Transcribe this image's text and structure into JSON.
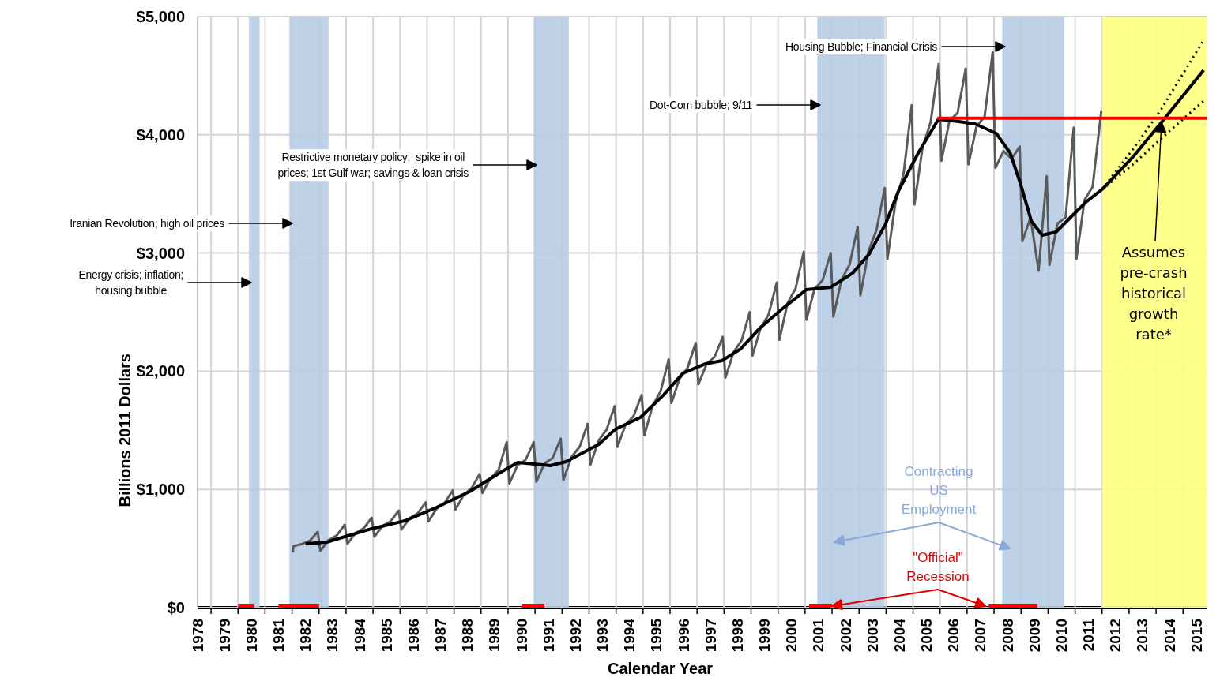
{
  "chart_data": {
    "type": "line",
    "xlabel": "Calendar Year",
    "ylabel": "Billions 2011 Dollars",
    "xlim": [
      1978.5,
      2015.9
    ],
    "ylim": [
      0,
      5000
    ],
    "xticks": [
      {
        "value": 1978.5,
        "label": "1978"
      },
      {
        "value": 1979,
        "label": null
      },
      {
        "value": 1979.5,
        "label": "1979"
      },
      {
        "value": 1980,
        "label": null
      },
      {
        "value": 1980.5,
        "label": "1980"
      },
      {
        "value": 1981,
        "label": null
      },
      {
        "value": 1981.5,
        "label": "1981"
      },
      {
        "value": 1982,
        "label": null
      },
      {
        "value": 1982.5,
        "label": "1982"
      },
      {
        "value": 1983,
        "label": null
      },
      {
        "value": 1983.5,
        "label": "1983"
      },
      {
        "value": 1984,
        "label": null
      },
      {
        "value": 1984.5,
        "label": "1984"
      },
      {
        "value": 1985,
        "label": null
      },
      {
        "value": 1985.5,
        "label": "1985"
      },
      {
        "value": 1986,
        "label": null
      },
      {
        "value": 1986.5,
        "label": "1986"
      },
      {
        "value": 1987,
        "label": null
      },
      {
        "value": 1987.5,
        "label": "1987"
      },
      {
        "value": 1988,
        "label": null
      },
      {
        "value": 1988.5,
        "label": "1988"
      },
      {
        "value": 1989,
        "label": null
      },
      {
        "value": 1989.5,
        "label": "1989"
      },
      {
        "value": 1990,
        "label": null
      },
      {
        "value": 1990.5,
        "label": "1990"
      },
      {
        "value": 1991,
        "label": null
      },
      {
        "value": 1991.5,
        "label": "1991"
      },
      {
        "value": 1992,
        "label": null
      },
      {
        "value": 1992.5,
        "label": "1992"
      },
      {
        "value": 1993,
        "label": null
      },
      {
        "value": 1993.5,
        "label": "1993"
      },
      {
        "value": 1994,
        "label": null
      },
      {
        "value": 1994.5,
        "label": "1994"
      },
      {
        "value": 1995,
        "label": null
      },
      {
        "value": 1995.5,
        "label": "1995"
      },
      {
        "value": 1996,
        "label": null
      },
      {
        "value": 1996.5,
        "label": "1996"
      },
      {
        "value": 1997,
        "label": null
      },
      {
        "value": 1997.5,
        "label": "1997"
      },
      {
        "value": 1998,
        "label": null
      },
      {
        "value": 1998.5,
        "label": "1998"
      },
      {
        "value": 1999,
        "label": null
      },
      {
        "value": 1999.5,
        "label": "1999"
      },
      {
        "value": 2000,
        "label": null
      },
      {
        "value": 2000.5,
        "label": "2000"
      },
      {
        "value": 2001,
        "label": null
      },
      {
        "value": 2001.5,
        "label": "2001"
      },
      {
        "value": 2002,
        "label": null
      },
      {
        "value": 2002.5,
        "label": "2002"
      },
      {
        "value": 2003,
        "label": null
      },
      {
        "value": 2003.5,
        "label": "2003"
      },
      {
        "value": 2004,
        "label": null
      },
      {
        "value": 2004.5,
        "label": "2004"
      },
      {
        "value": 2005,
        "label": null
      },
      {
        "value": 2005.5,
        "label": "2005"
      },
      {
        "value": 2006,
        "label": null
      },
      {
        "value": 2006.5,
        "label": "2006"
      },
      {
        "value": 2007,
        "label": null
      },
      {
        "value": 2007.5,
        "label": "2007"
      },
      {
        "value": 2008,
        "label": null
      },
      {
        "value": 2008.5,
        "label": "2008"
      },
      {
        "value": 2009,
        "label": null
      },
      {
        "value": 2009.5,
        "label": "2009"
      },
      {
        "value": 2010,
        "label": null
      },
      {
        "value": 2010.5,
        "label": "2010"
      },
      {
        "value": 2011,
        "label": null
      },
      {
        "value": 2011.5,
        "label": "2011"
      },
      {
        "value": 2012,
        "label": null
      },
      {
        "value": 2012.5,
        "label": "2012"
      },
      {
        "value": 2013,
        "label": null
      },
      {
        "value": 2013.5,
        "label": "2013"
      },
      {
        "value": 2014,
        "label": null
      },
      {
        "value": 2014.5,
        "label": "2014"
      },
      {
        "value": 2015,
        "label": null
      },
      {
        "value": 2015.5,
        "label": "2015"
      }
    ],
    "yticks": [
      {
        "value": 0,
        "label": "$0"
      },
      {
        "value": 1000,
        "label": "$1,000"
      },
      {
        "value": 2000,
        "label": "$2,000"
      },
      {
        "value": 3000,
        "label": "$3,000"
      },
      {
        "value": 4000,
        "label": "$4,000"
      },
      {
        "value": 5000,
        "label": "$5,000"
      }
    ],
    "grid": true,
    "bands": [
      {
        "axis": "x",
        "from": 1980.4,
        "to": 1980.8,
        "color": "#b8cce4"
      },
      {
        "axis": "x",
        "from": 1981.9,
        "to": 1983.35,
        "color": "#b8cce4"
      },
      {
        "axis": "x",
        "from": 1990.95,
        "to": 1992.25,
        "color": "#b8cce4"
      },
      {
        "axis": "x",
        "from": 2001.45,
        "to": 2003.95,
        "color": "#b8cce4"
      },
      {
        "axis": "x",
        "from": 2008.3,
        "to": 2010.6,
        "color": "#b8cce4"
      },
      {
        "axis": "x",
        "from": 2012.0,
        "to": 2015.9,
        "color": "#ffff80"
      }
    ],
    "annotations": [
      "Energy crisis; inflation;\nhousing bubble",
      "Iranian Revolution; high oil prices",
      "Restrictive monetary policy;  spike in oil\nprices; 1st Gulf war; savings & loan crisis",
      "Dot-Com bubble; 9/11",
      "Housing Bubble; Financial Crisis",
      "Assumes\npre-crash\nhistorical\ngrowth\nrate*",
      "Contracting\nUS\nEmployment",
      "\"Official\"\nRecession"
    ],
    "series": [
      {
        "color": "#5a5a5a",
        "x": [
          1982.03,
          1982.05,
          1982.35,
          1982.65,
          1982.95,
          1983.05,
          1983.35,
          1983.65,
          1983.95,
          1984.05,
          1984.35,
          1984.65,
          1984.95,
          1985.05,
          1985.35,
          1985.65,
          1985.95,
          1986.05,
          1986.35,
          1986.65,
          1986.95,
          1987.05,
          1987.35,
          1987.65,
          1987.95,
          1988.05,
          1988.35,
          1988.65,
          1988.95,
          1989.05,
          1989.35,
          1989.65,
          1989.95,
          1990.05,
          1990.35,
          1990.65,
          1990.95,
          1991.05,
          1991.35,
          1991.65,
          1991.95,
          1992.05,
          1992.35,
          1992.65,
          1992.95,
          1993.05,
          1993.35,
          1993.65,
          1993.95,
          1994.05,
          1994.35,
          1994.65,
          1994.95,
          1995.05,
          1995.35,
          1995.65,
          1995.95,
          1996.05,
          1996.35,
          1996.65,
          1996.95,
          1997.05,
          1997.35,
          1997.65,
          1997.95,
          1998.05,
          1998.35,
          1998.65,
          1998.95,
          1999.05,
          1999.35,
          1999.65,
          1999.95,
          2000.05,
          2000.35,
          2000.65,
          2000.95,
          2001.05,
          2001.35,
          2001.65,
          2001.95,
          2002.05,
          2002.35,
          2002.65,
          2002.95,
          2003.05,
          2003.35,
          2003.65,
          2003.95,
          2004.05,
          2004.35,
          2004.65,
          2004.95,
          2005.05,
          2005.35,
          2005.65,
          2005.95,
          2006.05,
          2006.35,
          2006.65,
          2006.95,
          2007.05,
          2007.35,
          2007.65,
          2007.95,
          2008.05,
          2008.35,
          2008.65,
          2008.95,
          2009.05,
          2009.35,
          2009.65,
          2009.95,
          2010.05,
          2010.35,
          2010.65,
          2010.95,
          2011.05,
          2011.35,
          2011.65,
          2011.97
        ],
        "values": [
          467,
          520,
          537,
          564,
          641,
          480,
          571,
          610,
          701,
          540,
          631,
          670,
          761,
          600,
          691,
          730,
          821,
          660,
          755,
          797,
          891,
          730,
          835,
          886,
          991,
          830,
          949,
          1012,
          1131,
          970,
          1096,
          1165,
          1400,
          1050,
          1205,
          1250,
          1400,
          1065,
          1220,
          1265,
          1430,
          1080,
          1275,
          1360,
          1555,
          1210,
          1412,
          1505,
          1705,
          1360,
          1545,
          1620,
          1800,
          1460,
          1705,
          1830,
          2100,
          1730,
          1936,
          2029,
          2240,
          1890,
          2059,
          2121,
          2290,
          1945,
          2160,
          2260,
          2500,
          2130,
          2362,
          2480,
          2750,
          2265,
          2575,
          2700,
          3010,
          2435,
          2694,
          2770,
          3000,
          2462,
          2774,
          2903,
          3220,
          2640,
          3016,
          3199,
          3550,
          2950,
          3428,
          3672,
          4250,
          3410,
          3890,
          4106,
          4600,
          3780,
          4120,
          4185,
          4560,
          3750,
          4072,
          4153,
          4700,
          3720,
          3862,
          3797,
          3900,
          3100,
          3300,
          2850,
          3650,
          2900,
          3250,
          3300,
          4060,
          2950,
          3450,
          3560,
          4200
        ]
      },
      {
        "color": "#000000",
        "x": [
          1982.5,
          1983.28,
          1984.95,
          1986.17,
          1987.35,
          1988.57,
          1989.75,
          1990.36,
          1991.57,
          1992.15,
          1993.36,
          1993.97,
          1994.9,
          1995.77,
          1996.48,
          1997.32,
          1997.93,
          1998.62,
          1999.35,
          2000.13,
          2001.05,
          2001.95,
          2002.76,
          2003.37,
          2003.98,
          2004.46,
          2005.19,
          2005.94,
          2006.69,
          2007.3,
          2008.08,
          2008.6,
          2009.0,
          2009.38,
          2009.78,
          2010.3,
          2010.79,
          2011.4,
          2012.0,
          2013.19,
          2014.2,
          2015.76
        ],
        "values": [
          541,
          554,
          668,
          734,
          848,
          981,
          1148,
          1228,
          1202,
          1235,
          1382,
          1509,
          1609,
          1802,
          1983,
          2063,
          2090,
          2190,
          2370,
          2523,
          2690,
          2710,
          2830,
          2990,
          3244,
          3525,
          3845,
          4132,
          4112,
          4092,
          4012,
          3845,
          3571,
          3271,
          3151,
          3178,
          3291,
          3431,
          3538,
          3825,
          4105,
          4546
        ]
      },
      {
        "color": "#000000",
        "line_style": "dotted",
        "x": [
          2012.0,
          2013.19,
          2014.2,
          2015.76
        ],
        "values": [
          3538,
          3892,
          4219,
          4800
        ]
      },
      {
        "color": "#000000",
        "line_style": "dotted",
        "x": [
          2012.0,
          2013.19,
          2014.4,
          2015.76
        ],
        "values": [
          3538,
          3758,
          4012,
          4286
        ]
      },
      {
        "color": "#ff0000",
        "x": [
          2005.9,
          2015.9
        ],
        "values": [
          4140,
          4140
        ]
      },
      {
        "color": "#ff0000",
        "x": [
          1980.0,
          1980.6,
          1980.8,
          1981.5,
          1983.0,
          1983.2,
          1990.5,
          1991.35,
          1991.5,
          2001.15,
          2002.0,
          2002.2,
          2007.8,
          2009.6
        ],
        "values": [
          0,
          0,
          null,
          0,
          0,
          null,
          0,
          0,
          null,
          0,
          0,
          null,
          0,
          0
        ]
      }
    ]
  }
}
